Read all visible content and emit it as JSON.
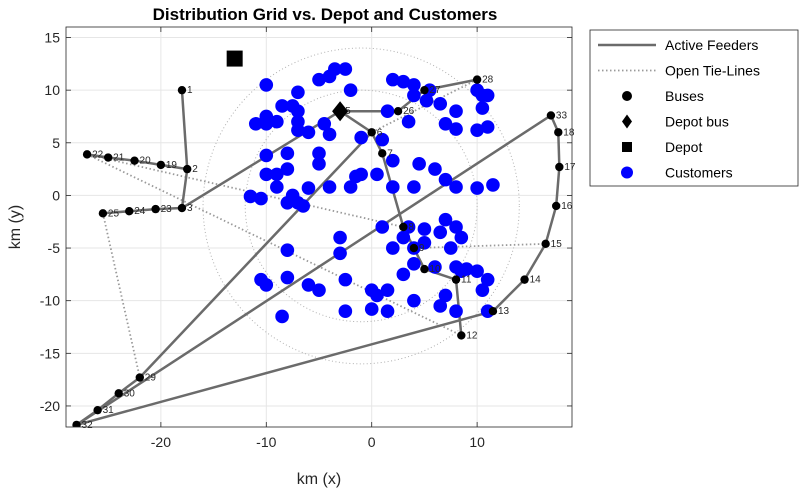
{
  "chart_data": {
    "type": "scatter",
    "title": "Distribution Grid vs. Depot and Customers",
    "xlabel": "km (x)",
    "ylabel": "km (y)",
    "xlim": [
      -29,
      19
    ],
    "ylim": [
      -22,
      16
    ],
    "xticks": [
      -20,
      -10,
      0,
      10
    ],
    "yticks": [
      -20,
      -15,
      -10,
      -5,
      0,
      5,
      10,
      15
    ],
    "grid": true,
    "legend_position": "outside-top-right",
    "colors": {
      "feeder": "#6b6b6b",
      "tie": "#9a9a9a",
      "bus": "#000000",
      "customer": "#0000ff",
      "circle": "#b0b0b0"
    },
    "legend": [
      {
        "label": "Active Feeders",
        "kind": "line"
      },
      {
        "label": "Open Tie-Lines",
        "kind": "dotted"
      },
      {
        "label": "Buses",
        "kind": "dot"
      },
      {
        "label": "Depot bus",
        "kind": "diamond"
      },
      {
        "label": "Depot",
        "kind": "square"
      },
      {
        "label": "Customers",
        "kind": "customer"
      }
    ],
    "service_circles": [
      {
        "cx": -1,
        "cy": -1,
        "r": 15
      },
      {
        "cx": -1,
        "cy": -1,
        "r": 11
      }
    ],
    "buses": [
      {
        "id": "1",
        "x": -18,
        "y": 10
      },
      {
        "id": "2",
        "x": -17.5,
        "y": 2.5
      },
      {
        "id": "3",
        "x": -18,
        "y": -1.2
      },
      {
        "id": "5",
        "x": -3,
        "y": 8
      },
      {
        "id": "6",
        "x": 0,
        "y": 6
      },
      {
        "id": "7",
        "x": 1,
        "y": 4
      },
      {
        "id": "8",
        "x": 3,
        "y": -3
      },
      {
        "id": "9",
        "x": 4,
        "y": -5
      },
      {
        "id": "10",
        "x": 5,
        "y": -7
      },
      {
        "id": "11",
        "x": 8,
        "y": -8
      },
      {
        "id": "12",
        "x": 8.5,
        "y": -13.3
      },
      {
        "id": "13",
        "x": 11.5,
        "y": -11
      },
      {
        "id": "14",
        "x": 14.5,
        "y": -8
      },
      {
        "id": "15",
        "x": 16.5,
        "y": -4.6
      },
      {
        "id": "16",
        "x": 17.5,
        "y": -1
      },
      {
        "id": "17",
        "x": 17.8,
        "y": 2.7
      },
      {
        "id": "18",
        "x": 17.7,
        "y": 6
      },
      {
        "id": "19",
        "x": -20,
        "y": 2.9
      },
      {
        "id": "20",
        "x": -22.5,
        "y": 3.3
      },
      {
        "id": "21",
        "x": -25,
        "y": 3.6
      },
      {
        "id": "22",
        "x": -27,
        "y": 3.9
      },
      {
        "id": "23",
        "x": -20.5,
        "y": -1.3
      },
      {
        "id": "24",
        "x": -23,
        "y": -1.5
      },
      {
        "id": "25",
        "x": -25.5,
        "y": -1.7
      },
      {
        "id": "26",
        "x": 2.5,
        "y": 8
      },
      {
        "id": "27",
        "x": 5,
        "y": 10
      },
      {
        "id": "28",
        "x": 10,
        "y": 11
      },
      {
        "id": "29",
        "x": -22,
        "y": -17.3
      },
      {
        "id": "30",
        "x": -24,
        "y": -18.8
      },
      {
        "id": "31",
        "x": -26,
        "y": -20.4
      },
      {
        "id": "32",
        "x": -28,
        "y": -21.8
      },
      {
        "id": "33",
        "x": 17,
        "y": 7.6
      }
    ],
    "feeders": [
      [
        "1",
        "2"
      ],
      [
        "2",
        "3"
      ],
      [
        "3",
        "23"
      ],
      [
        "23",
        "24"
      ],
      [
        "24",
        "25"
      ],
      [
        "2",
        "19"
      ],
      [
        "19",
        "20"
      ],
      [
        "20",
        "21"
      ],
      [
        "21",
        "22"
      ],
      [
        "3",
        "5"
      ],
      [
        "5",
        "6"
      ],
      [
        "6",
        "7"
      ],
      [
        "7",
        "8"
      ],
      [
        "8",
        "9"
      ],
      [
        "9",
        "10"
      ],
      [
        "10",
        "11"
      ],
      [
        "11",
        "12"
      ],
      [
        "5",
        "26"
      ],
      [
        "26",
        "27"
      ],
      [
        "27",
        "28"
      ],
      [
        "32",
        "31"
      ],
      [
        "31",
        "30"
      ],
      [
        "30",
        "29"
      ],
      [
        "29",
        "6"
      ],
      [
        "32",
        "13"
      ],
      [
        "13",
        "14"
      ],
      [
        "14",
        "15"
      ],
      [
        "15",
        "16"
      ],
      [
        "16",
        "17"
      ],
      [
        "17",
        "18"
      ],
      [
        "18",
        "33"
      ],
      [
        "33",
        "32"
      ]
    ],
    "tie_lines": [
      [
        "22",
        "8"
      ],
      [
        "25",
        "29"
      ],
      [
        "9",
        "15"
      ],
      [
        "22",
        "12"
      ],
      [
        "28",
        "6"
      ]
    ],
    "depot_bus": {
      "x": -3,
      "y": 8
    },
    "depot": {
      "x": -13,
      "y": 13
    },
    "customers": [
      [
        -10,
        10.5
      ],
      [
        -7,
        9.8
      ],
      [
        -5,
        11
      ],
      [
        -4,
        11.3
      ],
      [
        -3.5,
        12
      ],
      [
        -2.5,
        12
      ],
      [
        -2,
        10
      ],
      [
        -8.5,
        8.5
      ],
      [
        -10,
        7.5
      ],
      [
        -7.5,
        8.5
      ],
      [
        -7,
        8
      ],
      [
        -7,
        7
      ],
      [
        -9,
        7
      ],
      [
        -11,
        6.8
      ],
      [
        -10,
        6.8
      ],
      [
        -7,
        6.2
      ],
      [
        -6,
        6
      ],
      [
        -4.5,
        6.8
      ],
      [
        -4,
        5.8
      ],
      [
        -5,
        4
      ],
      [
        -8,
        4
      ],
      [
        -10,
        3.8
      ],
      [
        -5,
        3
      ],
      [
        -8,
        2.5
      ],
      [
        -9,
        2
      ],
      [
        -10,
        2
      ],
      [
        -9,
        0.8
      ],
      [
        -6,
        0.7
      ],
      [
        -4,
        0.8
      ],
      [
        -2,
        0.8
      ],
      [
        -11.5,
        -0.1
      ],
      [
        -10.5,
        -0.3
      ],
      [
        -8,
        -0.7
      ],
      [
        -7.5,
        0
      ],
      [
        -7,
        -0.7
      ],
      [
        -6.5,
        -1
      ],
      [
        -1.5,
        1.8
      ],
      [
        -1,
        2
      ],
      [
        0.5,
        2
      ],
      [
        -1,
        5.5
      ],
      [
        1.5,
        8
      ],
      [
        1,
        5.3
      ],
      [
        2,
        11
      ],
      [
        3,
        10.8
      ],
      [
        4,
        10.5
      ],
      [
        4,
        9.5
      ],
      [
        5.5,
        10
      ],
      [
        5.2,
        9
      ],
      [
        6.5,
        8.7
      ],
      [
        8,
        8
      ],
      [
        7,
        6.8
      ],
      [
        8,
        6.3
      ],
      [
        10,
        10
      ],
      [
        10.5,
        9.5
      ],
      [
        11,
        9.5
      ],
      [
        10.5,
        8.3
      ],
      [
        11,
        6.5
      ],
      [
        10,
        6.2
      ],
      [
        3.5,
        7
      ],
      [
        2,
        3.3
      ],
      [
        4.5,
        3
      ],
      [
        6,
        2.5
      ],
      [
        7,
        1.5
      ],
      [
        8,
        0.8
      ],
      [
        10,
        0.7
      ],
      [
        11.5,
        1
      ],
      [
        4,
        0.8
      ],
      [
        2,
        0.8
      ],
      [
        1,
        -3
      ],
      [
        3.5,
        -3
      ],
      [
        5,
        -3.2
      ],
      [
        6.5,
        -3.5
      ],
      [
        7,
        -2.3
      ],
      [
        8,
        -3
      ],
      [
        8.5,
        -4
      ],
      [
        5,
        -4.5
      ],
      [
        7.5,
        -5
      ],
      [
        2,
        -5
      ],
      [
        3,
        -4
      ],
      [
        4,
        -5
      ],
      [
        -3,
        -4
      ],
      [
        -3,
        -5.5
      ],
      [
        -8,
        -5.2
      ],
      [
        -10.5,
        -8
      ],
      [
        -10,
        -8.5
      ],
      [
        -8,
        -7.8
      ],
      [
        -6,
        -8.5
      ],
      [
        -5,
        -9
      ],
      [
        -2.5,
        -8
      ],
      [
        0,
        -9
      ],
      [
        0.5,
        -9.5
      ],
      [
        1.5,
        -9
      ],
      [
        3,
        -7.5
      ],
      [
        4,
        -6.5
      ],
      [
        6,
        -6.8
      ],
      [
        8,
        -6.8
      ],
      [
        8.5,
        -7.2
      ],
      [
        9,
        -7
      ],
      [
        10,
        -7.2
      ],
      [
        11,
        -8
      ],
      [
        10.5,
        -9
      ],
      [
        7,
        -9.5
      ],
      [
        6.5,
        -10.5
      ],
      [
        8,
        -11
      ],
      [
        11,
        -11
      ],
      [
        -8.5,
        -11.5
      ],
      [
        -2.5,
        -11
      ],
      [
        0,
        -10.8
      ],
      [
        1.5,
        -11
      ],
      [
        4,
        -10
      ]
    ]
  }
}
